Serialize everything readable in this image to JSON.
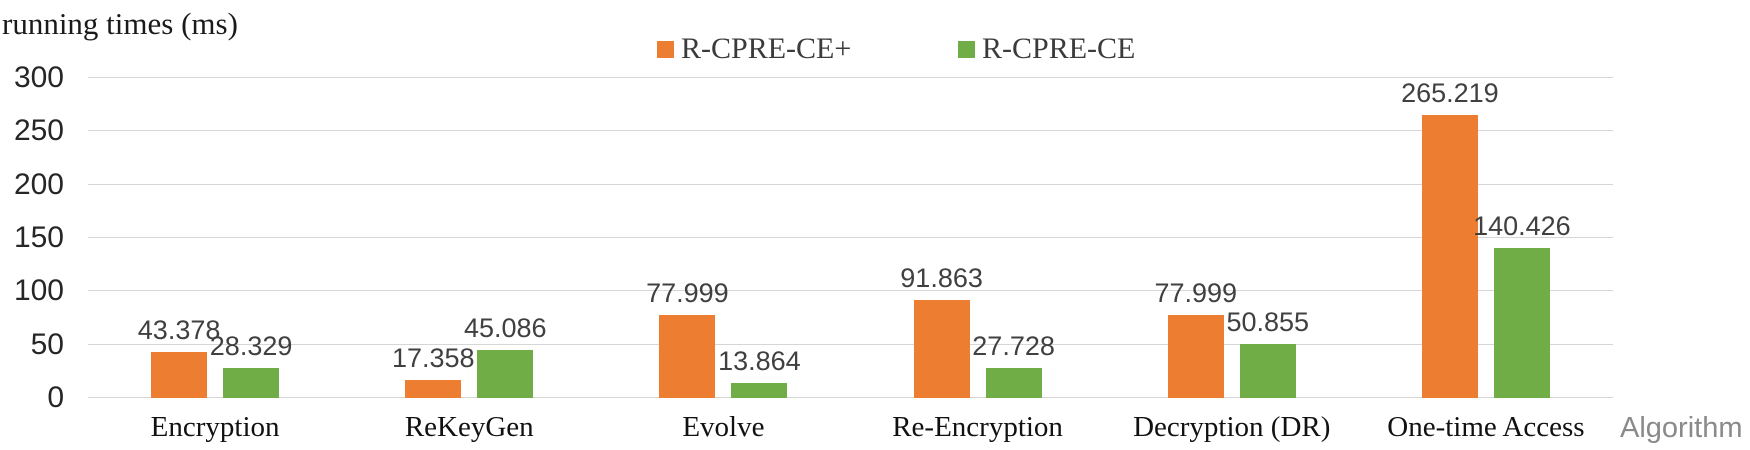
{
  "title": "running times (ms)",
  "x_axis_title": "Algorithm",
  "colors": {
    "series1": "#ED7D31",
    "series2": "#70AD47",
    "gridline": "#D6D6D6",
    "value_label": "#404040",
    "axis_label": "#262626",
    "x_axis_title": "#8A8A8A"
  },
  "chart_data": {
    "type": "bar",
    "categories": [
      "Encryption",
      "ReKeyGen",
      "Evolve",
      "Re-Encryption",
      "Decryption (DR)",
      "One-time Access"
    ],
    "series": [
      {
        "name": "R-CPRE-CE+",
        "color": "#ED7D31",
        "values": [
          43.378,
          17.358,
          77.999,
          91.863,
          77.999,
          265.219
        ]
      },
      {
        "name": "R-CPRE-CE",
        "color": "#70AD47",
        "values": [
          28.329,
          45.086,
          13.864,
          27.728,
          50.855,
          140.426
        ]
      }
    ],
    "title": "running times (ms)",
    "xlabel": "Algorithm",
    "ylabel": "",
    "ylim": [
      0,
      300
    ],
    "yticks": [
      0,
      50,
      100,
      150,
      200,
      250,
      300
    ],
    "grid": true,
    "legend_position": "top-center",
    "value_labels_decimals": 3
  }
}
